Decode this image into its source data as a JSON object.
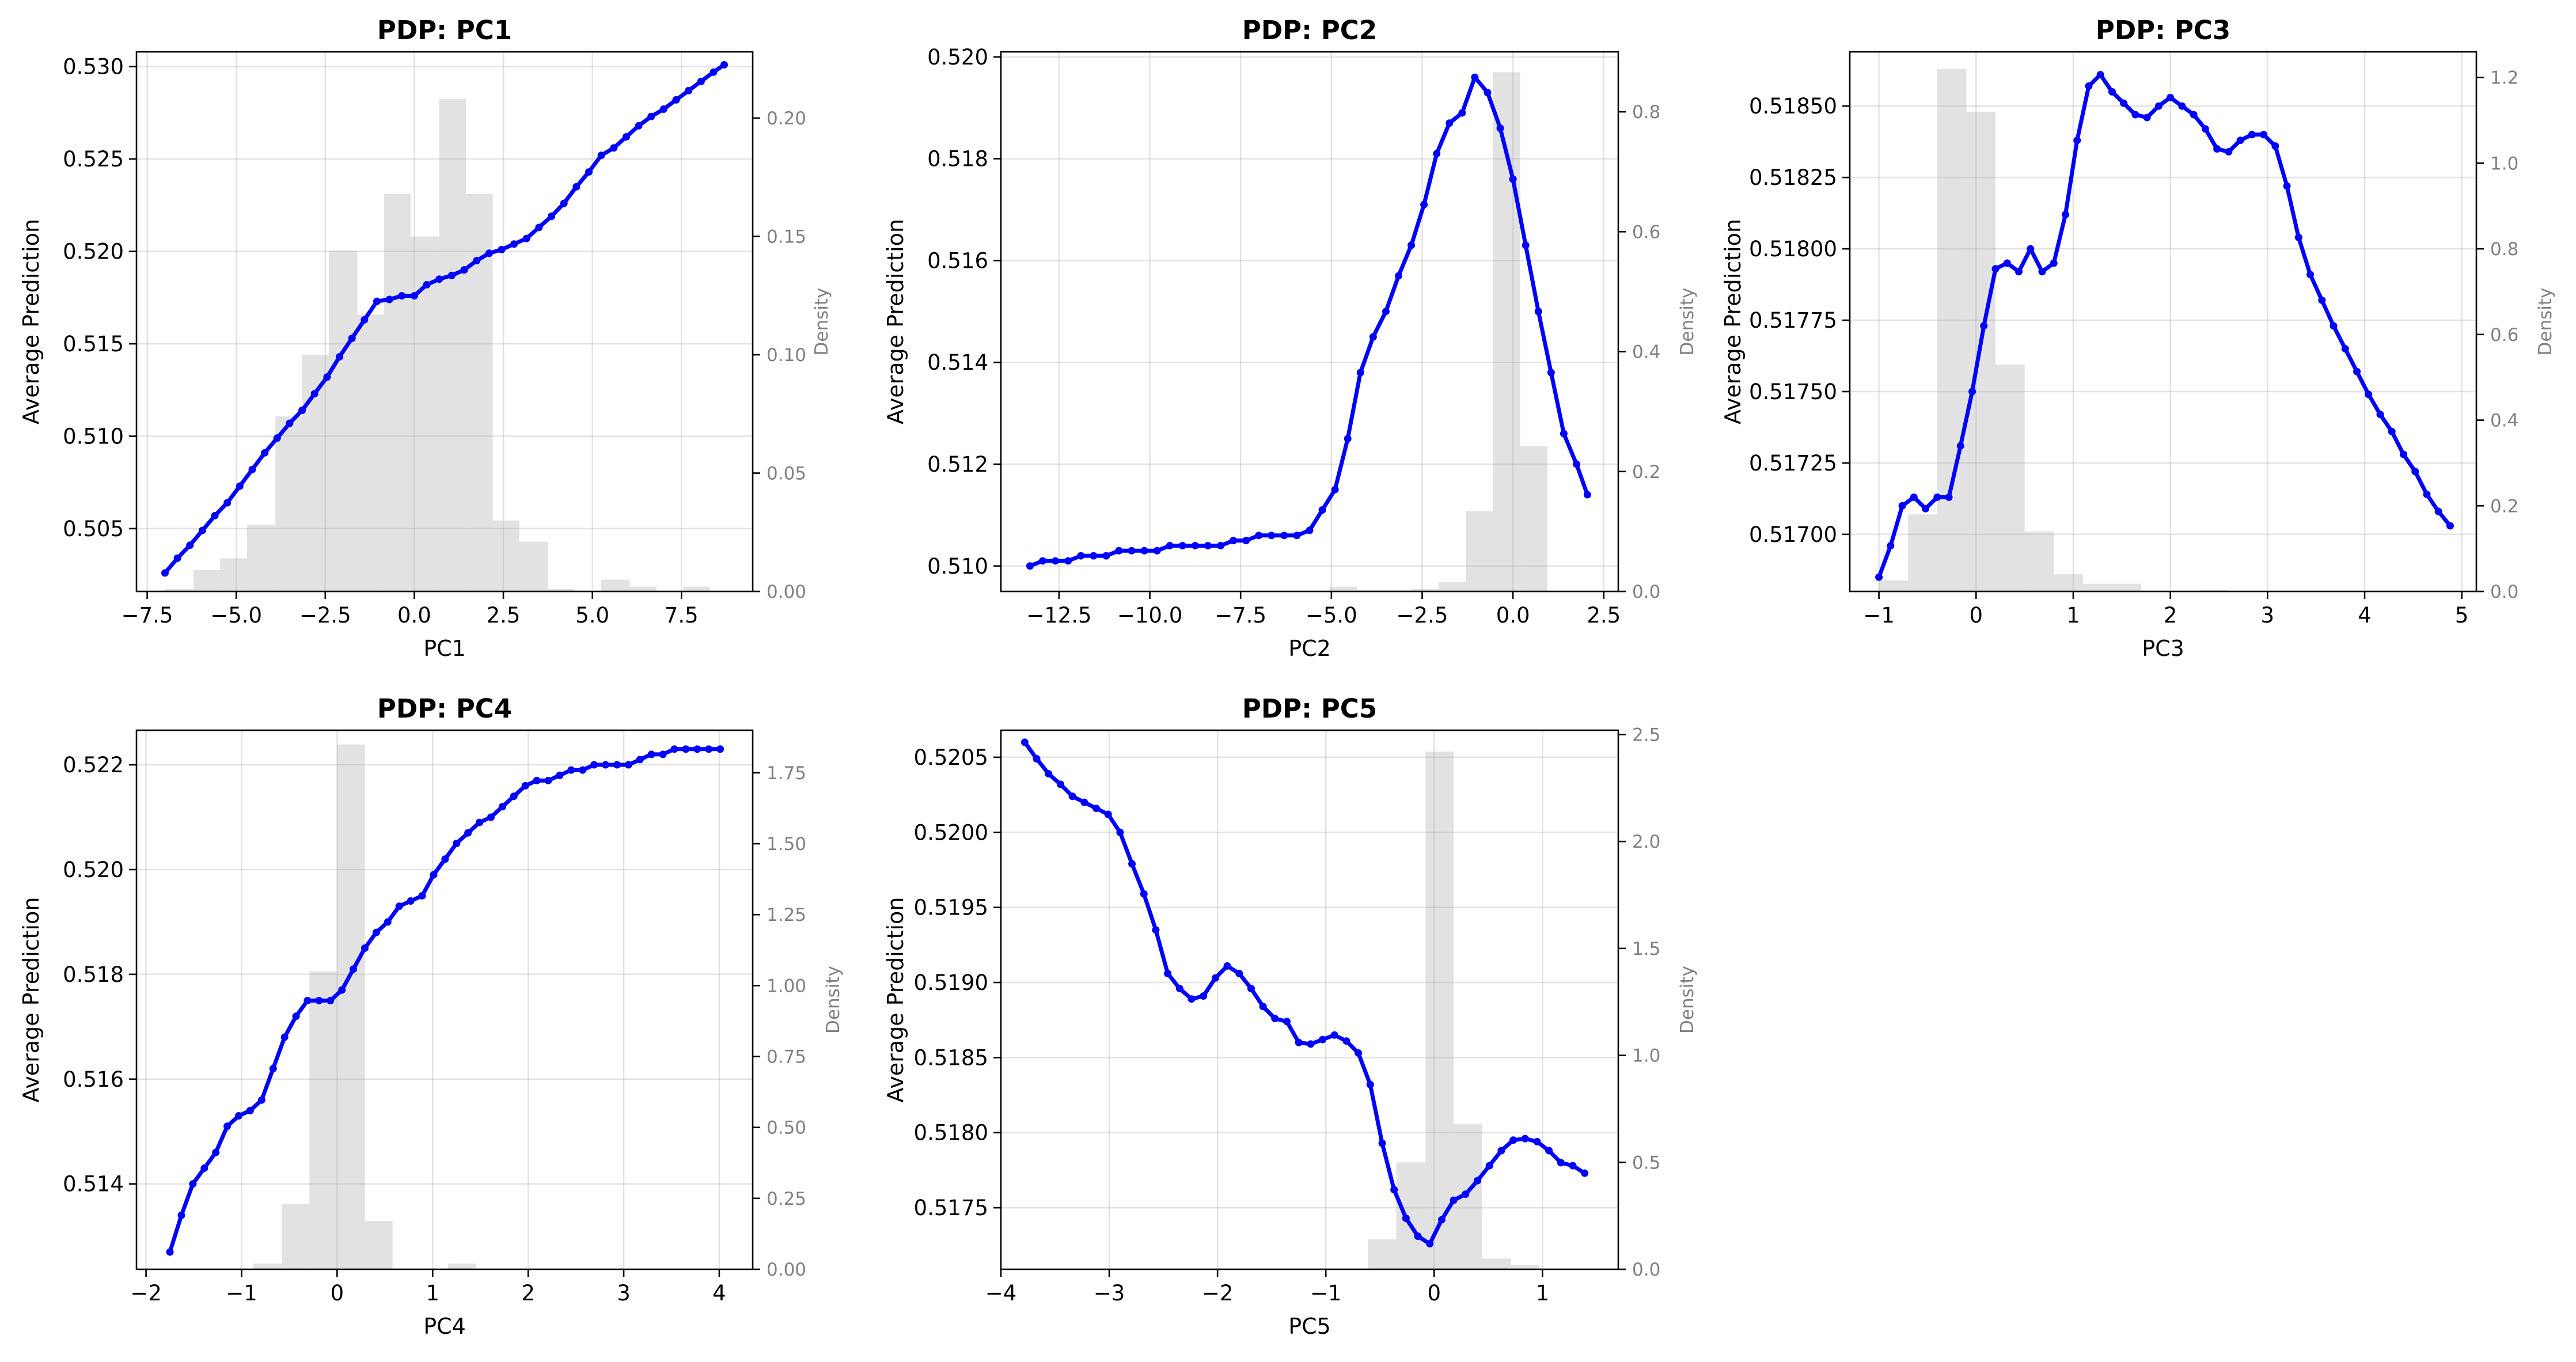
{
  "figure": {
    "line_color": "#0000ff",
    "hist_color": "#d3d3d3",
    "grid": true
  },
  "chart_data": [
    {
      "type": "line",
      "title": "PDP: PC1",
      "xlabel": "PC1",
      "ylabel": "Average Prediction",
      "y2label": "Density",
      "xlim": [
        -7.8,
        9.5
      ],
      "ylim": [
        0.5016,
        0.5308
      ],
      "y2lim": [
        0,
        0.228
      ],
      "xticks": [
        -7.5,
        -5.0,
        -2.5,
        0.0,
        2.5,
        5.0,
        7.5
      ],
      "xtick_labels": [
        "−7.5",
        "−5.0",
        "−2.5",
        "0.0",
        "2.5",
        "5.0",
        "7.5"
      ],
      "yticks": [
        0.505,
        0.51,
        0.515,
        0.52,
        0.525,
        0.53
      ],
      "ytick_labels": [
        "0.505",
        "0.510",
        "0.515",
        "0.520",
        "0.525",
        "0.530"
      ],
      "y2ticks": [
        0,
        0.05,
        0.1,
        0.15,
        0.2
      ],
      "y2tick_labels": [
        "0.00",
        "0.05",
        "0.10",
        "0.15",
        "0.20"
      ],
      "x": [
        -7.0,
        -6.65,
        -6.3,
        -5.95,
        -5.6,
        -5.25,
        -4.9,
        -4.55,
        -4.2,
        -3.85,
        -3.5,
        -3.15,
        -2.8,
        -2.45,
        -2.1,
        -1.75,
        -1.4,
        -1.05,
        -0.7,
        -0.35,
        0.0,
        0.35,
        0.7,
        1.05,
        1.4,
        1.75,
        2.1,
        2.45,
        2.8,
        3.15,
        3.5,
        3.85,
        4.2,
        4.55,
        4.9,
        5.25,
        5.6,
        5.95,
        6.3,
        6.65,
        7.0,
        7.35,
        7.7,
        8.05,
        8.4,
        8.7
      ],
      "y": [
        0.5026,
        0.5034,
        0.5041,
        0.5049,
        0.5057,
        0.5064,
        0.5073,
        0.5082,
        0.5091,
        0.5099,
        0.5107,
        0.5114,
        0.5123,
        0.5132,
        0.5143,
        0.5153,
        0.5163,
        0.5173,
        0.5174,
        0.5176,
        0.5176,
        0.5182,
        0.5185,
        0.5187,
        0.519,
        0.5195,
        0.5199,
        0.5201,
        0.5204,
        0.5207,
        0.5213,
        0.5219,
        0.5226,
        0.5235,
        0.5243,
        0.5252,
        0.5256,
        0.5262,
        0.5268,
        0.5273,
        0.5277,
        0.5282,
        0.5287,
        0.5292,
        0.5297,
        0.5301
      ],
      "hist_edges": [
        -7.0,
        -6.2,
        -5.45,
        -4.7,
        -3.9,
        -3.15,
        -2.4,
        -1.6,
        -0.85,
        -0.1,
        0.7,
        1.45,
        2.2,
        2.95,
        3.75,
        4.5,
        5.25,
        6.05,
        6.8,
        7.55,
        8.3
      ],
      "hist_values": [
        0.001,
        0.009,
        0.014,
        0.028,
        0.074,
        0.1,
        0.144,
        0.117,
        0.168,
        0.15,
        0.208,
        0.168,
        0.03,
        0.021,
        0.001,
        0.0,
        0.005,
        0.002,
        0.0,
        0.002
      ]
    },
    {
      "type": "line",
      "title": "PDP: PC2",
      "xlabel": "PC2",
      "ylabel": "Average Prediction",
      "y2label": "Density",
      "xlim": [
        -14.1,
        2.9
      ],
      "ylim": [
        0.5095,
        0.5201
      ],
      "y2lim": [
        0,
        0.9
      ],
      "xticks": [
        -12.5,
        -10.0,
        -7.5,
        -5.0,
        -2.5,
        0.0,
        2.5
      ],
      "xtick_labels": [
        "−12.5",
        "−10.0",
        "−7.5",
        "−5.0",
        "−2.5",
        "0.0",
        "2.5"
      ],
      "yticks": [
        0.51,
        0.512,
        0.514,
        0.516,
        0.518,
        0.52
      ],
      "ytick_labels": [
        "0.510",
        "0.512",
        "0.514",
        "0.516",
        "0.518",
        "0.520"
      ],
      "y2ticks": [
        0,
        0.2,
        0.4,
        0.6,
        0.8
      ],
      "y2tick_labels": [
        "0.0",
        "0.2",
        "0.4",
        "0.6",
        "0.8"
      ],
      "x": [
        -13.3,
        -12.95,
        -12.6,
        -12.25,
        -11.9,
        -11.55,
        -11.2,
        -10.85,
        -10.5,
        -10.15,
        -9.8,
        -9.45,
        -9.1,
        -8.75,
        -8.4,
        -8.05,
        -7.7,
        -7.35,
        -7.0,
        -6.65,
        -6.3,
        -5.95,
        -5.6,
        -5.25,
        -4.9,
        -4.55,
        -4.2,
        -3.85,
        -3.5,
        -3.15,
        -2.8,
        -2.45,
        -2.1,
        -1.75,
        -1.4,
        -1.05,
        -0.7,
        -0.35,
        0.0,
        0.35,
        0.7,
        1.05,
        1.4,
        1.75,
        2.05
      ],
      "y": [
        0.51,
        0.5101,
        0.5101,
        0.5101,
        0.5102,
        0.5102,
        0.5102,
        0.5103,
        0.5103,
        0.5103,
        0.5103,
        0.5104,
        0.5104,
        0.5104,
        0.5104,
        0.5104,
        0.5105,
        0.5105,
        0.5106,
        0.5106,
        0.5106,
        0.5106,
        0.5107,
        0.5111,
        0.5115,
        0.5125,
        0.5138,
        0.5145,
        0.515,
        0.5157,
        0.5163,
        0.5171,
        0.5181,
        0.5187,
        0.5189,
        0.5196,
        0.5193,
        0.5186,
        0.5176,
        0.5163,
        0.515,
        0.5138,
        0.5126,
        0.512,
        0.5114
      ],
      "hist_edges": [
        -13.3,
        -12.55,
        -11.8,
        -11.05,
        -10.3,
        -9.55,
        -8.8,
        -8.05,
        -7.3,
        -6.55,
        -5.8,
        -5.05,
        -4.3,
        -3.55,
        -2.8,
        -2.05,
        -1.3,
        -0.55,
        0.2,
        0.95,
        1.55
      ],
      "hist_values": [
        0.0,
        0.0,
        0.0,
        0.0,
        0.0,
        0.0,
        0.0,
        0.0,
        0.0,
        0.0,
        0.001,
        0.008,
        0.002,
        0.002,
        0.004,
        0.016,
        0.134,
        0.866,
        0.242,
        0.0
      ]
    },
    {
      "type": "line",
      "title": "PDP: PC3",
      "xlabel": "PC3",
      "ylabel": "Average Prediction",
      "y2label": "Density",
      "xlim": [
        -1.3,
        5.15
      ],
      "ylim": [
        0.5168,
        0.51869
      ],
      "y2lim": [
        0,
        1.26
      ],
      "xticks": [
        -1,
        0,
        1,
        2,
        3,
        4,
        5
      ],
      "xtick_labels": [
        "−1",
        "0",
        "1",
        "2",
        "3",
        "4",
        "5"
      ],
      "yticks": [
        0.517,
        0.51725,
        0.5175,
        0.51775,
        0.518,
        0.51825,
        0.5185
      ],
      "ytick_labels": [
        "0.51700",
        "0.51725",
        "0.51750",
        "0.51775",
        "0.51800",
        "0.51825",
        "0.51850"
      ],
      "y2ticks": [
        0,
        0.2,
        0.4,
        0.6,
        0.8,
        1.0,
        1.2
      ],
      "y2tick_labels": [
        "0.0",
        "0.2",
        "0.4",
        "0.6",
        "0.8",
        "1.0",
        "1.2"
      ],
      "x": [
        -1.0,
        -0.88,
        -0.76,
        -0.64,
        -0.52,
        -0.4,
        -0.28,
        -0.16,
        -0.04,
        0.08,
        0.2,
        0.32,
        0.44,
        0.56,
        0.68,
        0.8,
        0.92,
        1.04,
        1.16,
        1.28,
        1.4,
        1.52,
        1.64,
        1.76,
        1.88,
        2.0,
        2.12,
        2.24,
        2.36,
        2.48,
        2.6,
        2.72,
        2.84,
        2.96,
        3.08,
        3.2,
        3.32,
        3.44,
        3.56,
        3.68,
        3.8,
        3.92,
        4.04,
        4.16,
        4.28,
        4.4,
        4.52,
        4.64,
        4.76,
        4.88
      ],
      "y": [
        0.51685,
        0.51696,
        0.5171,
        0.51713,
        0.51709,
        0.51713,
        0.51713,
        0.51731,
        0.5175,
        0.51773,
        0.51793,
        0.51795,
        0.51792,
        0.518,
        0.51792,
        0.51795,
        0.51812,
        0.51838,
        0.51857,
        0.51861,
        0.51855,
        0.51851,
        0.51847,
        0.51846,
        0.5185,
        0.51853,
        0.5185,
        0.51847,
        0.51842,
        0.51835,
        0.51834,
        0.51838,
        0.5184,
        0.5184,
        0.51836,
        0.51822,
        0.51804,
        0.51791,
        0.51782,
        0.51773,
        0.51765,
        0.51757,
        0.51749,
        0.51742,
        0.51736,
        0.51728,
        0.51722,
        0.51714,
        0.51708,
        0.51703
      ],
      "hist_edges": [
        -1.0,
        -0.7,
        -0.4,
        -0.1,
        0.2,
        0.5,
        0.8,
        1.1,
        1.4,
        1.7,
        2.0,
        2.3,
        2.6,
        2.9,
        3.2,
        3.5,
        3.8,
        4.1,
        4.4,
        4.7,
        5.0
      ],
      "hist_values": [
        0.026,
        0.18,
        1.22,
        1.12,
        0.53,
        0.14,
        0.04,
        0.018,
        0.018,
        0.0,
        0.0,
        0.004,
        0.0,
        0.0,
        0.0,
        0.0,
        0.0,
        0.0,
        0.0,
        0.0
      ]
    },
    {
      "type": "line",
      "title": "PDP: PC4",
      "xlabel": "PC4",
      "ylabel": "Average Prediction",
      "y2label": "Density",
      "xlim": [
        -2.1,
        4.35
      ],
      "ylim": [
        0.51237,
        0.52266
      ],
      "y2lim": [
        0,
        1.9
      ],
      "xticks": [
        -2,
        -1,
        0,
        1,
        2,
        3,
        4
      ],
      "xtick_labels": [
        "−2",
        "−1",
        "0",
        "1",
        "2",
        "3",
        "4"
      ],
      "yticks": [
        0.514,
        0.516,
        0.518,
        0.52,
        0.522
      ],
      "ytick_labels": [
        "0.514",
        "0.516",
        "0.518",
        "0.520",
        "0.522"
      ],
      "y2ticks": [
        0,
        0.25,
        0.5,
        0.75,
        1.0,
        1.25,
        1.5,
        1.75
      ],
      "y2tick_labels": [
        "0.00",
        "0.25",
        "0.50",
        "0.75",
        "1.00",
        "1.25",
        "1.50",
        "1.75"
      ],
      "x": [
        -1.75,
        -1.63,
        -1.51,
        -1.39,
        -1.27,
        -1.15,
        -1.03,
        -0.91,
        -0.79,
        -0.67,
        -0.55,
        -0.43,
        -0.31,
        -0.19,
        -0.07,
        0.05,
        0.17,
        0.29,
        0.41,
        0.53,
        0.65,
        0.77,
        0.89,
        1.01,
        1.13,
        1.25,
        1.37,
        1.49,
        1.61,
        1.73,
        1.85,
        1.97,
        2.09,
        2.21,
        2.33,
        2.45,
        2.57,
        2.69,
        2.81,
        2.93,
        3.05,
        3.17,
        3.29,
        3.41,
        3.53,
        3.65,
        3.77,
        3.89,
        4.01
      ],
      "y": [
        0.5127,
        0.5134,
        0.514,
        0.5143,
        0.5146,
        0.5151,
        0.5153,
        0.5154,
        0.5156,
        0.5162,
        0.5168,
        0.5172,
        0.5175,
        0.5175,
        0.5175,
        0.5177,
        0.5181,
        0.5185,
        0.5188,
        0.519,
        0.5193,
        0.5194,
        0.5195,
        0.5199,
        0.5202,
        0.5205,
        0.5207,
        0.5209,
        0.521,
        0.5212,
        0.5214,
        0.5216,
        0.5217,
        0.5217,
        0.5218,
        0.5219,
        0.5219,
        0.522,
        0.522,
        0.522,
        0.522,
        0.5221,
        0.5222,
        0.5222,
        0.5223,
        0.5223,
        0.5223,
        0.5223,
        0.5223
      ],
      "hist_edges": [
        -1.75,
        -1.46,
        -1.17,
        -0.88,
        -0.58,
        -0.29,
        0.0,
        0.29,
        0.58,
        0.87,
        1.16,
        1.45,
        1.74,
        2.03,
        2.33,
        2.62,
        2.91,
        3.2,
        3.49,
        3.78,
        4.07
      ],
      "hist_values": [
        0.0,
        0.0,
        0.0,
        0.02,
        0.23,
        1.05,
        1.85,
        0.17,
        0.0,
        0.0,
        0.02,
        0.0,
        0.0,
        0.0,
        0.0,
        0.0,
        0.0,
        0.0,
        0.0,
        0.0
      ]
    },
    {
      "type": "line",
      "title": "PDP: PC5",
      "xlabel": "PC5",
      "ylabel": "Average Prediction",
      "y2label": "Density",
      "xlim": [
        -4.0,
        1.7
      ],
      "ylim": [
        0.51709,
        0.52068
      ],
      "y2lim": [
        0,
        2.52
      ],
      "xticks": [
        -4,
        -3,
        -2,
        -1,
        0,
        1
      ],
      "xtick_labels": [
        "−4",
        "−3",
        "−2",
        "−1",
        "0",
        "1"
      ],
      "yticks": [
        0.5175,
        0.518,
        0.5185,
        0.519,
        0.5195,
        0.52,
        0.5205
      ],
      "ytick_labels": [
        "0.5175",
        "0.5180",
        "0.5185",
        "0.5190",
        "0.5195",
        "0.5200",
        "0.5205"
      ],
      "y2ticks": [
        0,
        0.5,
        1.0,
        1.5,
        2.0,
        2.5
      ],
      "y2tick_labels": [
        "0.0",
        "0.5",
        "1.0",
        "1.5",
        "2.0",
        "2.5"
      ],
      "x": [
        -3.78,
        -3.67,
        -3.56,
        -3.45,
        -3.34,
        -3.23,
        -3.12,
        -3.01,
        -2.9,
        -2.79,
        -2.68,
        -2.57,
        -2.46,
        -2.35,
        -2.24,
        -2.13,
        -2.02,
        -1.91,
        -1.8,
        -1.69,
        -1.58,
        -1.47,
        -1.36,
        -1.25,
        -1.14,
        -1.03,
        -0.92,
        -0.81,
        -0.7,
        -0.59,
        -0.48,
        -0.37,
        -0.26,
        -0.15,
        -0.04,
        0.07,
        0.18,
        0.29,
        0.4,
        0.51,
        0.62,
        0.73,
        0.84,
        0.95,
        1.06,
        1.17,
        1.28,
        1.39
      ],
      "y": [
        0.5206,
        0.52049,
        0.52039,
        0.52032,
        0.52024,
        0.5202,
        0.52016,
        0.52012,
        0.52,
        0.51979,
        0.51959,
        0.51935,
        0.51906,
        0.51896,
        0.51889,
        0.51891,
        0.51903,
        0.51911,
        0.51906,
        0.51896,
        0.51884,
        0.51876,
        0.51874,
        0.5186,
        0.51859,
        0.51862,
        0.51865,
        0.51861,
        0.51853,
        0.51832,
        0.51793,
        0.51762,
        0.51743,
        0.51731,
        0.51726,
        0.51742,
        0.51755,
        0.51759,
        0.51768,
        0.51778,
        0.51788,
        0.51795,
        0.51796,
        0.51794,
        0.51788,
        0.5178,
        0.51778,
        0.51773
      ],
      "hist_edges": [
        -3.78,
        -3.52,
        -3.25,
        -2.99,
        -2.72,
        -2.46,
        -2.2,
        -1.93,
        -1.67,
        -1.4,
        -1.14,
        -0.88,
        -0.61,
        -0.35,
        -0.08,
        0.18,
        0.44,
        0.71,
        0.97,
        1.24,
        1.5
      ],
      "hist_values": [
        0.0,
        0.0,
        0.0,
        0.0,
        0.0,
        0.0,
        0.0,
        0.0,
        0.0,
        0.0,
        0.0,
        0.0,
        0.14,
        0.5,
        2.42,
        0.68,
        0.05,
        0.02,
        0.0,
        0.0
      ]
    }
  ]
}
